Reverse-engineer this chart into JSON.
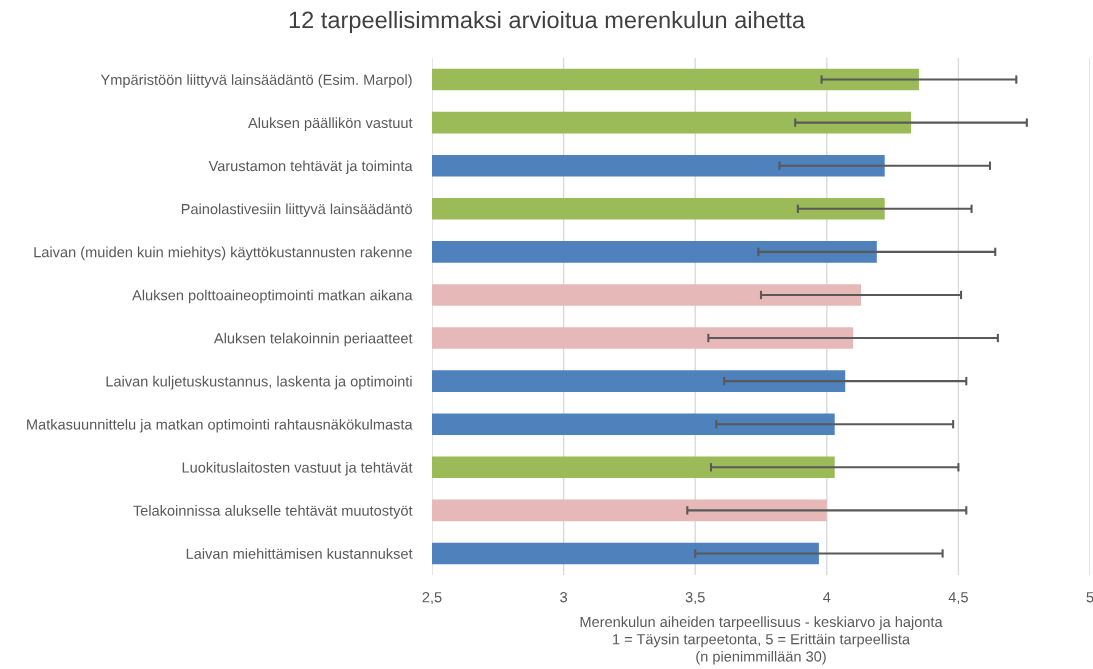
{
  "chart_data": {
    "type": "bar",
    "orientation": "horizontal",
    "title": "12 tarpeellisimmaksi arvioitua merenkulun aihetta",
    "xlabel": "Merenkulun aiheiden tarpeellisuus - keskiarvo ja hajonta\n1 = Täysin tarpeetonta, 5 = Erittäin tarpeellista\n(n pienimmillään 30)",
    "categories": [
      "Ympäristöön liittyvä lainsäädäntö (Esim. Marpol)",
      "Aluksen päällikön vastuut",
      "Varustamon tehtävät ja toiminta",
      "Painolastivesiin liittyvä lainsäädäntö",
      "Laivan (muiden kuin miehitys) käyttökustannusten rakenne",
      "Aluksen polttoaineoptimointi matkan aikana",
      "Aluksen telakoinnin periaatteet",
      "Laivan kuljetuskustannus, laskenta ja optimointi",
      "Matkasuunnittelu ja matkan optimointi rahtausnäkökulmasta",
      "Luokituslaitosten vastuut ja tehtävät",
      "Telakoinnissa alukselle tehtävät muutostyöt",
      "Laivan miehittämisen kustannukset"
    ],
    "values": [
      4.35,
      4.32,
      4.22,
      4.22,
      4.19,
      4.13,
      4.1,
      4.07,
      4.03,
      4.03,
      4.0,
      3.97
    ],
    "errors": [
      0.37,
      0.44,
      0.4,
      0.33,
      0.45,
      0.38,
      0.55,
      0.46,
      0.45,
      0.47,
      0.53,
      0.47
    ],
    "colors": [
      "#9bbb59",
      "#9bbb59",
      "#4f81bd",
      "#9bbb59",
      "#4f81bd",
      "#e6b9b8",
      "#e6b9b8",
      "#4f81bd",
      "#4f81bd",
      "#9bbb59",
      "#e6b9b8",
      "#4f81bd"
    ],
    "xlim": [
      2.5,
      5
    ],
    "xticks": [
      {
        "value": 2.5,
        "label": "2,5"
      },
      3,
      {
        "value": 3.5,
        "label": "3,5"
      },
      4,
      {
        "value": 4.5,
        "label": "4,5"
      },
      5
    ],
    "grid": "x",
    "legend": false
  }
}
